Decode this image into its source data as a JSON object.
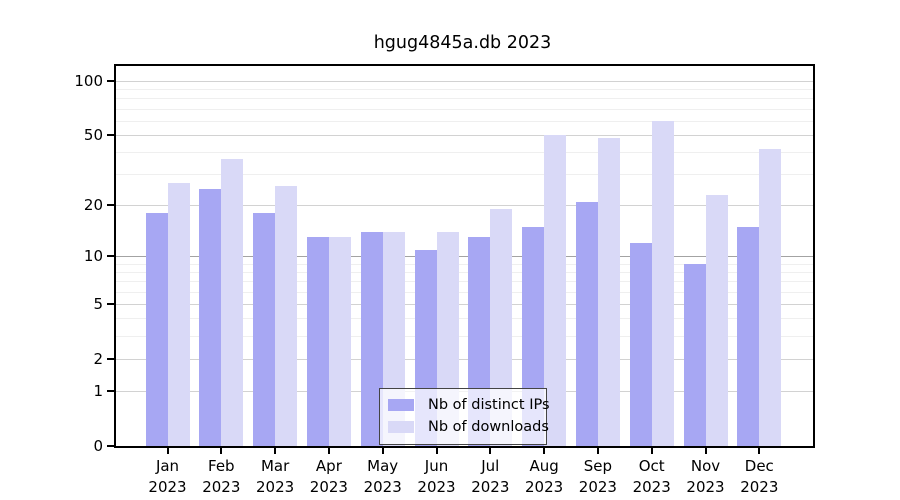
{
  "chart_data": {
    "type": "bar",
    "title": "hgug4845a.db 2023",
    "year_label": "2023",
    "categories": [
      "Jan",
      "Feb",
      "Mar",
      "Apr",
      "May",
      "Jun",
      "Jul",
      "Aug",
      "Sep",
      "Oct",
      "Nov",
      "Dec"
    ],
    "series": [
      {
        "name": "Nb of distinct IPs",
        "color": "#a7a7f3",
        "values": [
          18,
          25,
          18,
          13,
          14,
          11,
          13,
          15,
          21,
          12,
          9,
          15
        ]
      },
      {
        "name": "Nb of downloads",
        "color": "#d9d9f7",
        "values": [
          27,
          37,
          26,
          13,
          14,
          14,
          19,
          50,
          48,
          60,
          23,
          42
        ]
      }
    ],
    "y_axis": {
      "scale": "log10(1+x)",
      "tick_values": [
        0,
        1,
        2,
        5,
        10,
        20,
        50,
        100
      ],
      "tick_labels": [
        "0",
        "1",
        "2",
        "5",
        "10",
        "20",
        "50",
        "100"
      ]
    },
    "xlabel": "",
    "ylabel": "",
    "ylim": [
      0,
      130
    ],
    "grid": "on",
    "legend_position": "bottom-center"
  }
}
